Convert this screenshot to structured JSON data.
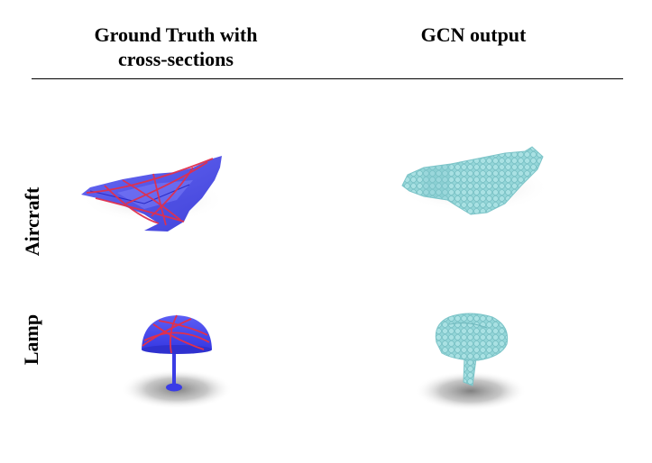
{
  "header": {
    "ground_truth_line1": "Ground Truth with",
    "ground_truth_line2": "cross-sections",
    "gcn_output": "GCN output"
  },
  "rows": [
    {
      "label": "Aircraft"
    },
    {
      "label": "Lamp"
    }
  ],
  "colors": {
    "ground_truth_mesh": "#4a4cf0",
    "cross_section_lines": "#e0304e",
    "gcn_voxels": "#8fd3d6",
    "shadow": "#8a8a8a"
  }
}
